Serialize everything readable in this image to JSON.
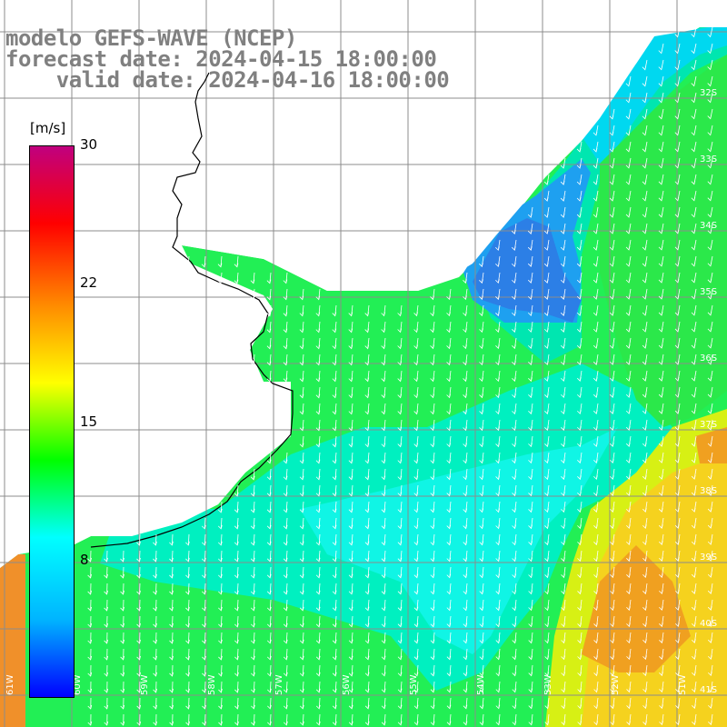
{
  "title": {
    "line1": "modelo GEFS-WAVE (NCEP)",
    "line2": "forecast date: 2024-04-15 18:00:00",
    "line3": "    valid date: 2024-04-16 18:00:00"
  },
  "colorbar": {
    "unit": "[m/s]",
    "ticks": [
      "30",
      "22",
      "15",
      "8"
    ],
    "colors": [
      "#0000ff",
      "#00b4ff",
      "#00ffff",
      "#00ff00",
      "#ffff00",
      "#ff8c00",
      "#ff0000",
      "#c0007f"
    ]
  },
  "lat_labels": [
    "32S",
    "33S",
    "34S",
    "35S",
    "36S",
    "37S",
    "38S",
    "39S",
    "40S",
    "41S"
  ],
  "lon_labels": [
    "61W",
    "60W",
    "59W",
    "58W",
    "57W",
    "56W",
    "55W",
    "54W",
    "53W",
    "52W",
    "51W"
  ],
  "colors": {
    "land": "#ffffff",
    "grid": "#8c8c8c",
    "coast": "#000000",
    "arrows": "#ffffff"
  }
}
